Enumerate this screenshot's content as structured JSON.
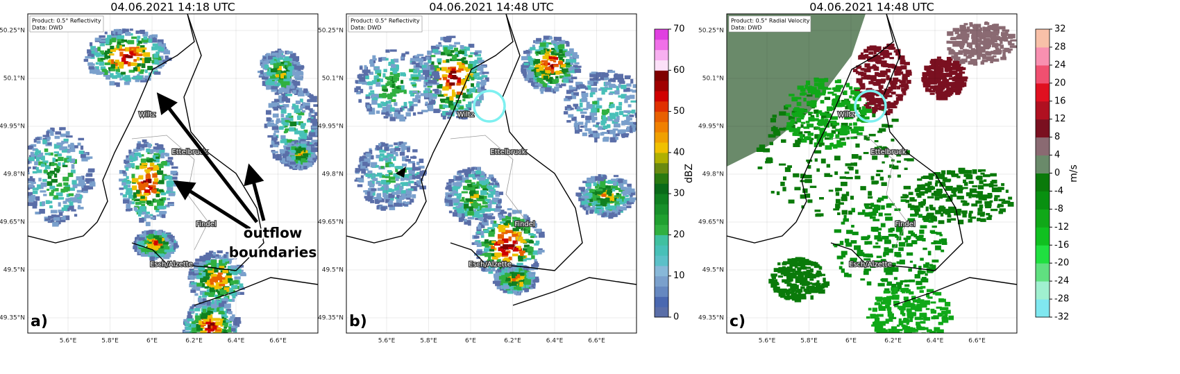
{
  "panels": [
    {
      "title": "04.06.2021 14:18 UTC",
      "label": "a)",
      "product": "Product: 0.5° Reflectivity",
      "source": "Data: DWD"
    },
    {
      "title": "04.06.2021 14:48 UTC",
      "label": "b)",
      "product": "Product: 0.5° Reflectivity",
      "source": "Data: DWD"
    },
    {
      "title": "04.06.2021 14:48 UTC",
      "label": "c)",
      "product": "Product: 0.5° Radial Velocity",
      "source": "Data: DWD"
    }
  ],
  "places": [
    "Wiltz",
    "Ettelbruck",
    "Findel",
    "Esch/Alzette"
  ],
  "lat_ticks": [
    "50.25°N",
    "50.1°N",
    "49.95°N",
    "49.8°N",
    "49.65°N",
    "49.5°N",
    "49.35°N"
  ],
  "lon_ticks": [
    "5.6°E",
    "5.8°E",
    "6°E",
    "6.2°E",
    "6.4°E",
    "6.6°E"
  ],
  "annotation": [
    "outflow",
    "boundaries"
  ],
  "colorbars": [
    {
      "label": "dBZ",
      "ticks": [
        0,
        10,
        20,
        30,
        40,
        50,
        60,
        70
      ],
      "colors": [
        "#5a6ea8",
        "#4a68b0",
        "#6688c0",
        "#7aa0cc",
        "#88b8d8",
        "#5cc0c8",
        "#48c0b8",
        "#40c0a0",
        "#30b040",
        "#20a030",
        "#18902a",
        "#108020",
        "#0a6a18",
        "#2a7a10",
        "#6a8a10",
        "#b0b000",
        "#f0c000",
        "#f0a000",
        "#f08000",
        "#e86000",
        "#e03000",
        "#d00000",
        "#a00000",
        "#800000",
        "#fce0f8",
        "#f8b0f0",
        "#f070e8",
        "#e040e0"
      ]
    },
    {
      "label": "m/s",
      "ticks": [
        -32,
        -28,
        -24,
        -20,
        -16,
        -12,
        -8,
        -4,
        0,
        4,
        8,
        12,
        16,
        20,
        24,
        28,
        32
      ],
      "colors": [
        "#80e8f0",
        "#a0f0d0",
        "#60e080",
        "#20e040",
        "#10c020",
        "#10a818",
        "#089010",
        "#0a7a0a",
        "#6a8a6a",
        "#8a6a72",
        "#7a1020",
        "#b01020",
        "#e01020",
        "#f05070",
        "#f890b0",
        "#f8c0a8"
      ]
    }
  ]
}
